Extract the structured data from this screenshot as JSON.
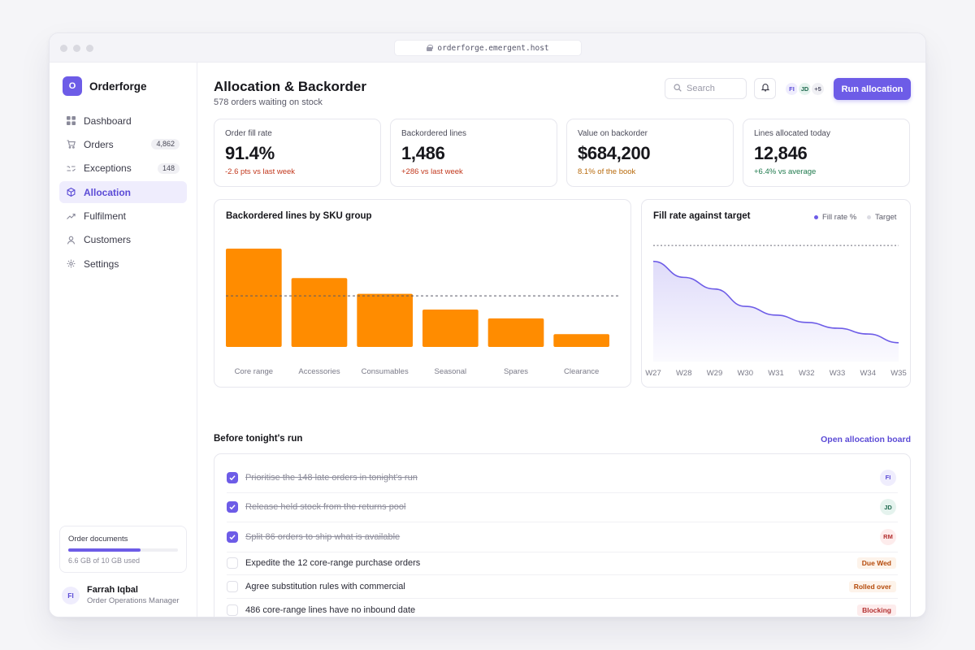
{
  "browser": {
    "url": "orderforge.emergent.host"
  },
  "brand": {
    "logo": "O",
    "name": "Orderforge"
  },
  "nav": [
    {
      "label": "Dashboard",
      "icon": "grid-icon",
      "count": ""
    },
    {
      "label": "Orders",
      "icon": "cart-icon",
      "count": "4,862"
    },
    {
      "label": "Exceptions",
      "icon": "exceptions-icon",
      "count": "148"
    },
    {
      "label": "Allocation",
      "icon": "cube-icon",
      "count": "",
      "active": true
    },
    {
      "label": "Fulfilment",
      "icon": "trend-icon",
      "count": ""
    },
    {
      "label": "Customers",
      "icon": "user-icon",
      "count": ""
    },
    {
      "label": "Settings",
      "icon": "gear-icon",
      "count": ""
    }
  ],
  "storage": {
    "title": "Order documents",
    "text": "6.6 GB of 10 GB used",
    "used_fraction": 0.66
  },
  "user": {
    "initials": "FI",
    "name": "Farrah Iqbal",
    "role": "Order Operations Manager"
  },
  "header": {
    "title": "Allocation & Backorder",
    "subtitle": "578 orders waiting on stock",
    "search_placeholder": "Search",
    "avatars": [
      "FI",
      "JD",
      "+5"
    ],
    "run_label": "Run allocation"
  },
  "kpis": [
    {
      "label": "Order fill rate",
      "value": "91.4%",
      "delta": "-2.6 pts vs last week",
      "tone": "#c2381d"
    },
    {
      "label": "Backordered lines",
      "value": "1,486",
      "delta": "+286 vs last week",
      "tone": "#c2381d"
    },
    {
      "label": "Value on backorder",
      "value": "$684,200",
      "delta": "8.1% of the book",
      "tone": "#b86a0c"
    },
    {
      "label": "Lines allocated today",
      "value": "12,846",
      "delta": "+6.4% vs average",
      "tone": "#1f7a4d"
    }
  ],
  "chart_data": [
    {
      "type": "bar",
      "title": "Backordered lines by SKU group",
      "categories": [
        "Core range",
        "Accessories",
        "Consumables",
        "Seasonal",
        "Spares",
        "Clearance"
      ],
      "values": [
        100,
        70,
        54,
        38,
        29,
        13
      ],
      "reference_line": 52,
      "ylim": [
        0,
        100
      ],
      "color": "#ff8c00",
      "grid": false
    },
    {
      "type": "area",
      "title": "Fill rate against target",
      "x": [
        "W27",
        "W28",
        "W29",
        "W30",
        "W31",
        "W32",
        "W33",
        "W34",
        "W35"
      ],
      "series": [
        {
          "name": "Fill rate %",
          "values": [
            96.5,
            95.4,
            94.6,
            93.4,
            92.8,
            92.3,
            91.9,
            91.5,
            90.9
          ],
          "color": "#6d5ce7"
        },
        {
          "name": "Target",
          "values": [
            97.6,
            97.6,
            97.6,
            97.6,
            97.6,
            97.6,
            97.6,
            97.6,
            97.6
          ],
          "color": "#d6d6de"
        }
      ],
      "ylim": [
        89.6,
        98.5
      ],
      "legend_position": "top-right",
      "grid": false
    }
  ],
  "tasks_section": {
    "title": "Before tonight's run",
    "link": "Open allocation board"
  },
  "tasks": [
    {
      "text": "Prioritise the 148 late orders in tonight's run",
      "done": true,
      "badge": "FI",
      "kind": "avatar"
    },
    {
      "text": "Release held stock from the returns pool",
      "done": true,
      "badge": "JD",
      "kind": "avatar"
    },
    {
      "text": "Split 86 orders to ship what is available",
      "done": true,
      "badge": "RM",
      "kind": "avatar"
    },
    {
      "text": "Expedite the 12 core-range purchase orders",
      "done": false,
      "badge": "Due Wed",
      "kind": "tag"
    },
    {
      "text": "Agree substitution rules with commercial",
      "done": false,
      "badge": "Rolled over",
      "kind": "tag"
    },
    {
      "text": "486 core-range lines have no inbound date",
      "done": false,
      "badge": "Blocking",
      "kind": "tag-block"
    }
  ]
}
